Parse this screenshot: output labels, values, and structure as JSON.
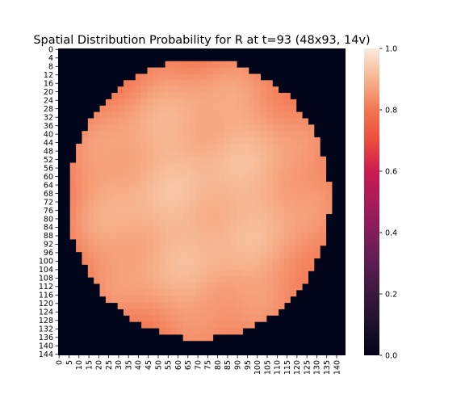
{
  "chart_data": {
    "type": "heatmap",
    "title": "Spatial Distribution Probability for R at t=93 (48x93, 14v)",
    "xlabel": "",
    "ylabel": "",
    "grid_cols": 145,
    "grid_rows": 145,
    "x_tick_labels": [
      "0",
      "5",
      "10",
      "15",
      "20",
      "25",
      "30",
      "35",
      "40",
      "45",
      "50",
      "55",
      "60",
      "65",
      "70",
      "75",
      "80",
      "85",
      "90",
      "95",
      "100",
      "105",
      "110",
      "115",
      "120",
      "125",
      "130",
      "135",
      "140"
    ],
    "y_tick_labels": [
      "0",
      "4",
      "8",
      "12",
      "16",
      "20",
      "24",
      "28",
      "32",
      "36",
      "40",
      "44",
      "48",
      "52",
      "56",
      "60",
      "64",
      "68",
      "72",
      "76",
      "80",
      "84",
      "88",
      "92",
      "96",
      "100",
      "104",
      "108",
      "112",
      "116",
      "120",
      "124",
      "128",
      "132",
      "136",
      "140",
      "144"
    ],
    "region_shape": "circle",
    "region_center": [
      71,
      71
    ],
    "region_radius_cells": 66,
    "inside_value_range": [
      0.78,
      0.93
    ],
    "outside_value": 0.0,
    "colorbar": {
      "min": 0.0,
      "max": 1.0,
      "tick_labels": [
        "0.0",
        "0.2",
        "0.4",
        "0.6",
        "0.8",
        "1.0"
      ],
      "colormap": "rocket"
    }
  },
  "colors": {
    "background_dark": "#03051a",
    "cell_high": "#faebdd",
    "cell_mid": "#f5b798",
    "cell_low": "#ec6a48"
  }
}
